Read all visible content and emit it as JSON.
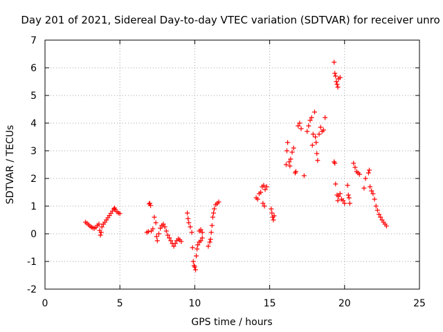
{
  "chart_data": {
    "type": "scatter",
    "title": "Day 201 of 2021, Sidereal Day-to-day VTEC variation (SDTVAR) for receiver unro",
    "xlabel": "GPS time / hours",
    "ylabel": "SDTVAR / TECUs",
    "xlim": [
      0,
      25
    ],
    "ylim": [
      -2,
      7
    ],
    "xticks": [
      0,
      5,
      10,
      15,
      20,
      25
    ],
    "yticks": [
      -2,
      -1,
      0,
      1,
      2,
      3,
      4,
      5,
      6,
      7
    ],
    "grid": true,
    "marker": "+",
    "color": "#ff0000",
    "series": [
      {
        "name": "SDTVAR",
        "points": [
          [
            2.7,
            0.42
          ],
          [
            2.8,
            0.38
          ],
          [
            2.9,
            0.33
          ],
          [
            3.0,
            0.28
          ],
          [
            3.1,
            0.24
          ],
          [
            3.2,
            0.21
          ],
          [
            3.3,
            0.2
          ],
          [
            3.4,
            0.23
          ],
          [
            3.5,
            0.3
          ],
          [
            3.6,
            0.35
          ],
          [
            3.65,
            0.12
          ],
          [
            3.7,
            -0.05
          ],
          [
            3.75,
            0.05
          ],
          [
            3.8,
            0.25
          ],
          [
            3.9,
            0.35
          ],
          [
            4.0,
            0.42
          ],
          [
            4.1,
            0.5
          ],
          [
            4.2,
            0.58
          ],
          [
            4.3,
            0.66
          ],
          [
            4.4,
            0.74
          ],
          [
            4.5,
            0.82
          ],
          [
            4.6,
            0.9
          ],
          [
            4.65,
            0.93
          ],
          [
            4.7,
            0.87
          ],
          [
            4.8,
            0.8
          ],
          [
            4.9,
            0.75
          ],
          [
            5.0,
            0.73
          ],
          [
            6.8,
            0.05
          ],
          [
            6.9,
            0.08
          ],
          [
            6.95,
            1.08
          ],
          [
            7.0,
            1.1
          ],
          [
            7.05,
            1.02
          ],
          [
            7.1,
            0.1
          ],
          [
            7.2,
            0.18
          ],
          [
            7.3,
            0.6
          ],
          [
            7.4,
            0.4
          ],
          [
            7.45,
            -0.1
          ],
          [
            7.5,
            -0.25
          ],
          [
            7.6,
            0.0
          ],
          [
            7.7,
            0.2
          ],
          [
            7.8,
            0.3
          ],
          [
            7.9,
            0.35
          ],
          [
            8.0,
            0.25
          ],
          [
            8.1,
            0.1
          ],
          [
            8.2,
            -0.05
          ],
          [
            8.3,
            -0.15
          ],
          [
            8.4,
            -0.25
          ],
          [
            8.5,
            -0.35
          ],
          [
            8.6,
            -0.45
          ],
          [
            8.7,
            -0.35
          ],
          [
            8.8,
            -0.25
          ],
          [
            8.9,
            -0.18
          ],
          [
            9.0,
            -0.22
          ],
          [
            9.1,
            -0.28
          ],
          [
            9.5,
            0.75
          ],
          [
            9.55,
            0.55
          ],
          [
            9.6,
            0.4
          ],
          [
            9.7,
            0.25
          ],
          [
            9.8,
            0.05
          ],
          [
            9.85,
            -0.5
          ],
          [
            9.9,
            -1.0
          ],
          [
            9.95,
            -1.15
          ],
          [
            10.0,
            -1.2
          ],
          [
            10.05,
            -1.3
          ],
          [
            10.1,
            -0.8
          ],
          [
            10.15,
            -0.55
          ],
          [
            10.2,
            -0.4
          ],
          [
            10.3,
            -0.3
          ],
          [
            10.4,
            -0.25
          ],
          [
            10.5,
            -0.15
          ],
          [
            10.3,
            0.1
          ],
          [
            10.4,
            0.15
          ],
          [
            10.5,
            0.05
          ],
          [
            10.9,
            -0.45
          ],
          [
            11.0,
            -0.3
          ],
          [
            11.05,
            -0.2
          ],
          [
            11.1,
            0.05
          ],
          [
            11.15,
            0.3
          ],
          [
            11.2,
            0.6
          ],
          [
            11.25,
            0.75
          ],
          [
            11.3,
            0.9
          ],
          [
            11.4,
            1.05
          ],
          [
            11.5,
            1.1
          ],
          [
            11.6,
            1.15
          ],
          [
            14.1,
            1.3
          ],
          [
            14.2,
            1.25
          ],
          [
            14.3,
            1.45
          ],
          [
            14.4,
            1.5
          ],
          [
            14.5,
            1.7
          ],
          [
            14.55,
            1.1
          ],
          [
            14.6,
            1.75
          ],
          [
            14.65,
            1.0
          ],
          [
            14.7,
            1.6
          ],
          [
            14.8,
            1.7
          ],
          [
            15.1,
            0.9
          ],
          [
            15.15,
            0.75
          ],
          [
            15.2,
            0.6
          ],
          [
            15.25,
            0.5
          ],
          [
            15.3,
            0.65
          ],
          [
            16.1,
            2.5
          ],
          [
            16.15,
            3.0
          ],
          [
            16.2,
            3.3
          ],
          [
            16.3,
            2.6
          ],
          [
            16.35,
            2.45
          ],
          [
            16.4,
            2.7
          ],
          [
            16.5,
            2.95
          ],
          [
            16.6,
            3.1
          ],
          [
            16.7,
            2.2
          ],
          [
            16.75,
            2.25
          ],
          [
            16.9,
            3.9
          ],
          [
            17.0,
            4.0
          ],
          [
            17.1,
            3.8
          ],
          [
            17.3,
            2.1
          ],
          [
            17.5,
            3.7
          ],
          [
            17.6,
            3.9
          ],
          [
            17.7,
            4.1
          ],
          [
            17.8,
            4.2
          ],
          [
            17.85,
            3.2
          ],
          [
            17.9,
            3.6
          ],
          [
            18.0,
            4.4
          ],
          [
            18.05,
            3.5
          ],
          [
            18.1,
            3.3
          ],
          [
            18.15,
            2.9
          ],
          [
            18.2,
            2.65
          ],
          [
            18.3,
            3.6
          ],
          [
            18.4,
            3.85
          ],
          [
            18.5,
            3.7
          ],
          [
            18.6,
            3.75
          ],
          [
            18.7,
            4.2
          ],
          [
            19.3,
            6.2
          ],
          [
            19.35,
            5.8
          ],
          [
            19.4,
            5.7
          ],
          [
            19.45,
            5.5
          ],
          [
            19.5,
            5.4
          ],
          [
            19.55,
            5.3
          ],
          [
            19.6,
            5.6
          ],
          [
            19.7,
            5.65
          ],
          [
            19.3,
            2.6
          ],
          [
            19.35,
            2.55
          ],
          [
            19.4,
            1.8
          ],
          [
            19.5,
            1.4
          ],
          [
            19.55,
            1.2
          ],
          [
            19.6,
            1.35
          ],
          [
            19.7,
            1.45
          ],
          [
            19.8,
            1.25
          ],
          [
            19.9,
            1.2
          ],
          [
            20.0,
            1.1
          ],
          [
            20.2,
            1.75
          ],
          [
            20.25,
            1.4
          ],
          [
            20.3,
            1.3
          ],
          [
            20.35,
            1.1
          ],
          [
            20.6,
            2.55
          ],
          [
            20.7,
            2.4
          ],
          [
            20.8,
            2.25
          ],
          [
            20.9,
            2.2
          ],
          [
            21.0,
            2.15
          ],
          [
            21.3,
            1.65
          ],
          [
            21.4,
            2.0
          ],
          [
            21.6,
            2.2
          ],
          [
            21.65,
            2.3
          ],
          [
            21.7,
            1.7
          ],
          [
            21.8,
            1.55
          ],
          [
            21.9,
            1.45
          ],
          [
            22.0,
            1.25
          ],
          [
            22.1,
            1.0
          ],
          [
            22.2,
            0.85
          ],
          [
            22.3,
            0.7
          ],
          [
            22.4,
            0.6
          ],
          [
            22.5,
            0.5
          ],
          [
            22.6,
            0.42
          ],
          [
            22.7,
            0.35
          ],
          [
            22.8,
            0.28
          ]
        ]
      }
    ]
  }
}
